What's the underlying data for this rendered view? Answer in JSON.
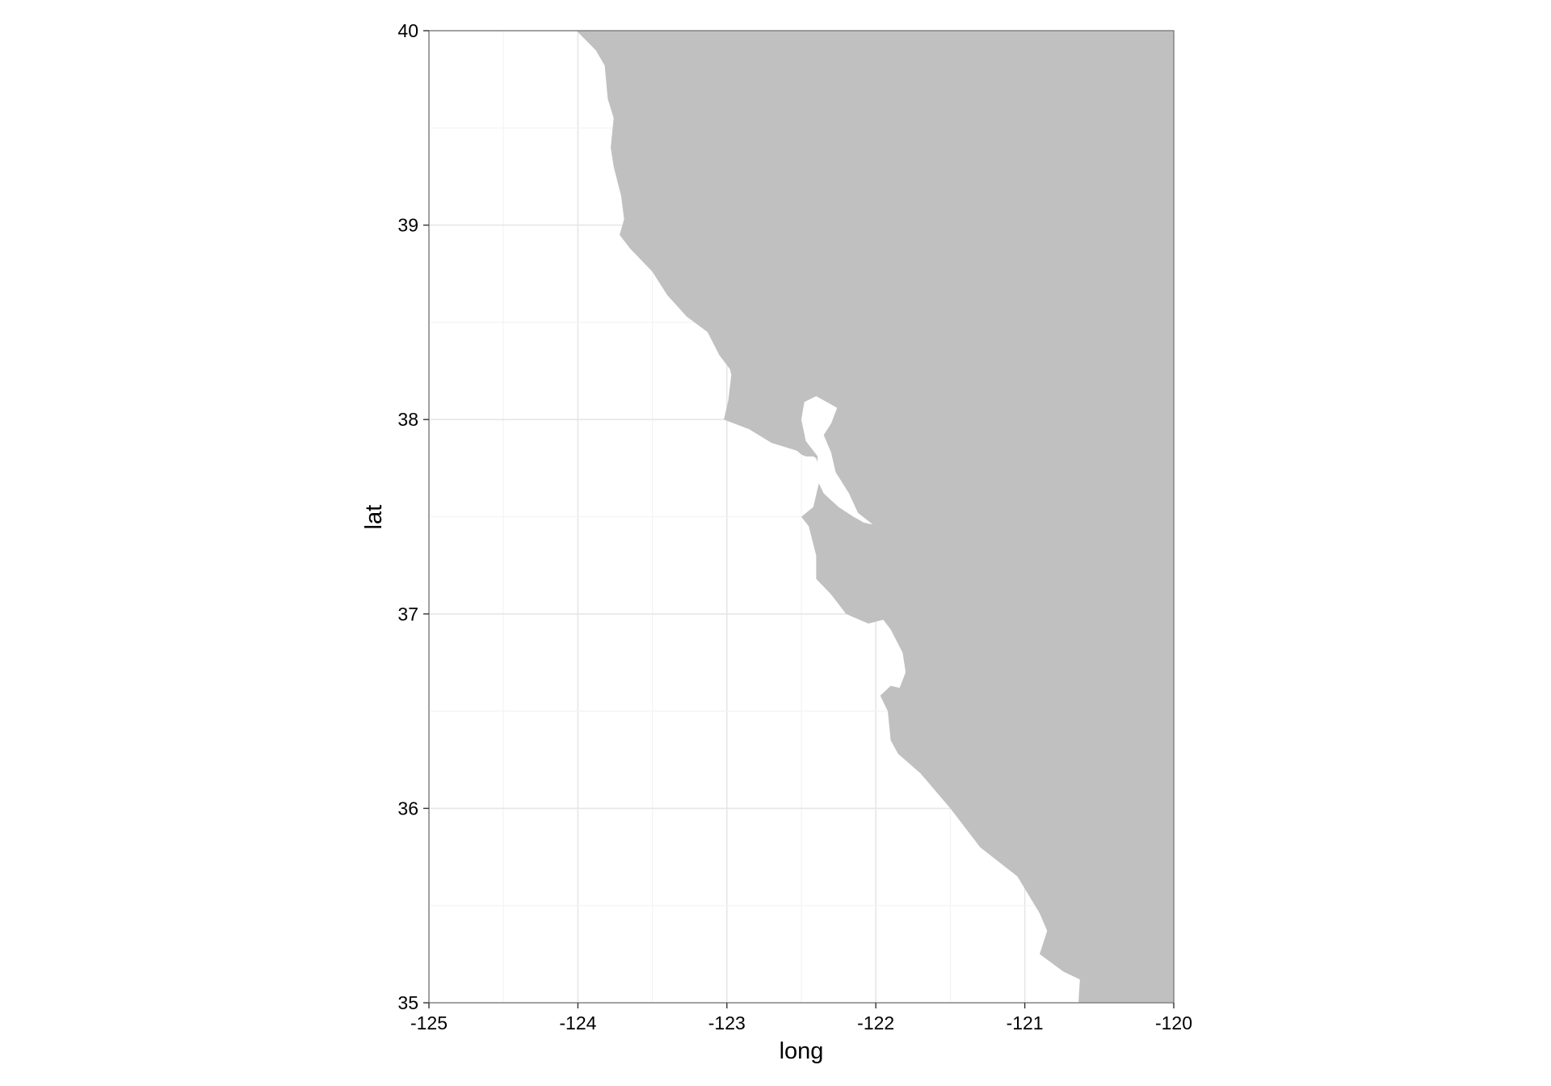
{
  "chart_data": {
    "type": "map",
    "xlabel": "long",
    "ylabel": "lat",
    "xlim": [
      -125,
      -120
    ],
    "ylim": [
      35,
      40
    ],
    "x_ticks": [
      -125,
      -124,
      -123,
      -122,
      -121,
      -120
    ],
    "y_ticks": [
      35,
      36,
      37,
      38,
      39,
      40
    ],
    "x_tick_labels": [
      "-125",
      "-124",
      "-123",
      "-122",
      "-121",
      "-120"
    ],
    "y_tick_labels": [
      "35",
      "36",
      "37",
      "38",
      "39",
      "40"
    ],
    "grid": true,
    "land_color": "#c0c0c0",
    "water_color": "#ffffff",
    "gridline_color": "#ebebeb",
    "panel_border_color": "#7f7f7f",
    "land_polygon": [
      [
        -124.01,
        40.0
      ],
      [
        -123.88,
        39.9
      ],
      [
        -123.82,
        39.82
      ],
      [
        -123.8,
        39.65
      ],
      [
        -123.76,
        39.55
      ],
      [
        -123.78,
        39.4
      ],
      [
        -123.76,
        39.3
      ],
      [
        -123.71,
        39.15
      ],
      [
        -123.69,
        39.03
      ],
      [
        -123.72,
        38.95
      ],
      [
        -123.65,
        38.88
      ],
      [
        -123.5,
        38.76
      ],
      [
        -123.4,
        38.64
      ],
      [
        -123.27,
        38.53
      ],
      [
        -123.13,
        38.45
      ],
      [
        -123.05,
        38.33
      ],
      [
        -122.98,
        38.26
      ],
      [
        -122.97,
        38.23
      ],
      [
        -122.99,
        38.1
      ],
      [
        -123.02,
        38.0
      ],
      [
        -122.85,
        37.95
      ],
      [
        -122.7,
        37.88
      ],
      [
        -122.53,
        37.84
      ],
      [
        -122.5,
        37.82
      ],
      [
        -122.47,
        37.81
      ],
      [
        -122.42,
        37.81
      ],
      [
        -122.4,
        37.8
      ],
      [
        -122.38,
        37.75
      ],
      [
        -122.38,
        37.68
      ],
      [
        -122.42,
        37.55
      ],
      [
        -122.5,
        37.5
      ],
      [
        -122.45,
        37.45
      ],
      [
        -122.4,
        37.3
      ],
      [
        -122.4,
        37.18
      ],
      [
        -122.3,
        37.1
      ],
      [
        -122.2,
        37.0
      ],
      [
        -122.05,
        36.95
      ],
      [
        -121.95,
        36.97
      ],
      [
        -121.9,
        36.92
      ],
      [
        -121.82,
        36.8
      ],
      [
        -121.8,
        36.7
      ],
      [
        -121.84,
        36.62
      ],
      [
        -121.9,
        36.63
      ],
      [
        -121.97,
        36.58
      ],
      [
        -121.92,
        36.5
      ],
      [
        -121.9,
        36.35
      ],
      [
        -121.85,
        36.28
      ],
      [
        -121.7,
        36.18
      ],
      [
        -121.5,
        36.0
      ],
      [
        -121.3,
        35.8
      ],
      [
        -121.05,
        35.65
      ],
      [
        -120.9,
        35.46
      ],
      [
        -120.85,
        35.37
      ],
      [
        -120.9,
        35.25
      ],
      [
        -120.74,
        35.16
      ],
      [
        -120.63,
        35.12
      ],
      [
        -120.64,
        35.0
      ],
      [
        -120.0,
        35.0
      ],
      [
        -120.0,
        40.0
      ]
    ],
    "bay_polygon": [
      [
        -122.39,
        37.81
      ],
      [
        -122.47,
        37.89
      ],
      [
        -122.5,
        38.0
      ],
      [
        -122.48,
        38.09
      ],
      [
        -122.4,
        38.12
      ],
      [
        -122.26,
        38.06
      ],
      [
        -122.3,
        37.98
      ],
      [
        -122.35,
        37.92
      ],
      [
        -122.3,
        37.83
      ],
      [
        -122.27,
        37.73
      ],
      [
        -122.18,
        37.62
      ],
      [
        -122.12,
        37.52
      ],
      [
        -122.02,
        37.46
      ],
      [
        -122.08,
        37.47
      ],
      [
        -122.15,
        37.5
      ],
      [
        -122.25,
        37.55
      ],
      [
        -122.35,
        37.62
      ],
      [
        -122.4,
        37.7
      ]
    ]
  }
}
